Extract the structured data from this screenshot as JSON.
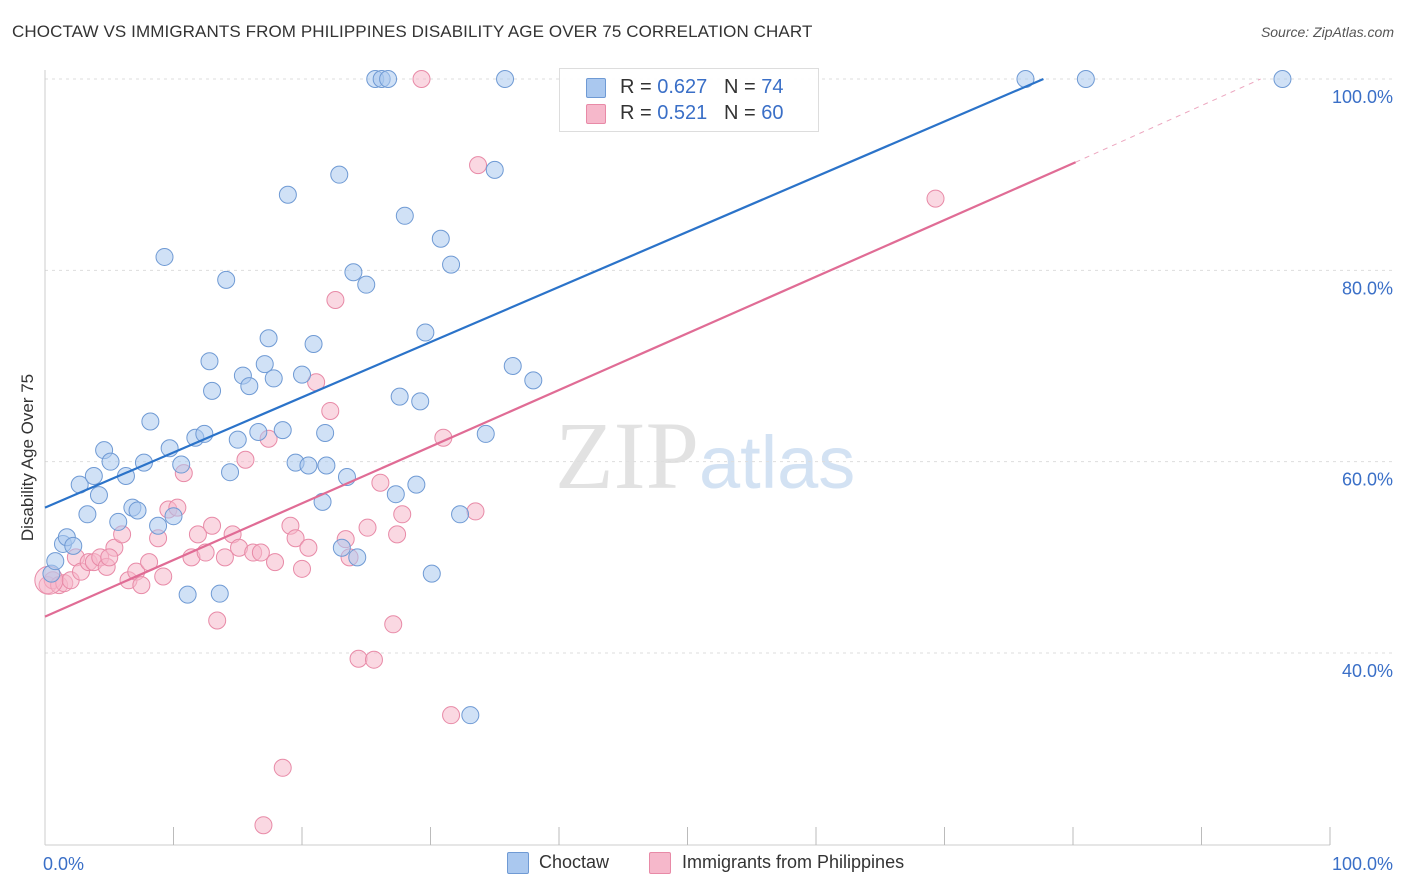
{
  "title": "CHOCTAW VS IMMIGRANTS FROM PHILIPPINES DISABILITY AGE OVER 75 CORRELATION CHART",
  "source": "Source: ZipAtlas.com",
  "watermark": {
    "zip": "ZIP",
    "atlas": "atlas"
  },
  "legend": {
    "series1": {
      "r_label": "R =",
      "r_value": "0.627",
      "n_label": "N =",
      "n_value": "74"
    },
    "series2": {
      "r_label": "R =",
      "r_value": "0.521",
      "n_label": "N =",
      "n_value": "60"
    }
  },
  "bottom_legend": {
    "series1": "Choctaw",
    "series2": "Immigrants from Philippines"
  },
  "colors": {
    "choctaw_fill": "#aac8ef",
    "choctaw_stroke": "#6f9ad4",
    "choctaw_line": "#2b73c9",
    "phil_fill": "#f6b8cb",
    "phil_stroke": "#e88aa7",
    "phil_line": "#e06c95",
    "grid": "#dddddd",
    "axis_label": "#3a6fc7"
  },
  "chart_data": {
    "type": "scatter",
    "title": "CHOCTAW VS IMMIGRANTS FROM PHILIPPINES DISABILITY AGE OVER 75 CORRELATION CHART",
    "xlabel": "",
    "ylabel": "Disability Age Over 75",
    "xlim": [
      0,
      100
    ],
    "ylim": [
      20,
      102
    ],
    "x_tick_labels": [
      "0.0%",
      "100.0%"
    ],
    "y_ticks": [
      40,
      60,
      80,
      100
    ],
    "y_tick_labels": [
      "40.0%",
      "60.0%",
      "80.0%",
      "100.0%"
    ],
    "grid": true,
    "legend_position": "top-center",
    "series": [
      {
        "name": "Choctaw",
        "r": 0.627,
        "n": 74,
        "trend": {
          "x0": 0,
          "y0": 55.2,
          "x1": 77.7,
          "y1": 100
        },
        "points": [
          [
            0.5,
            48.3
          ],
          [
            0.8,
            49.6
          ],
          [
            1.4,
            51.4
          ],
          [
            1.7,
            52.1
          ],
          [
            2.2,
            51.2
          ],
          [
            2.7,
            57.6
          ],
          [
            3.3,
            54.5
          ],
          [
            3.8,
            58.5
          ],
          [
            4.2,
            56.5
          ],
          [
            4.6,
            61.2
          ],
          [
            5.1,
            60.0
          ],
          [
            5.7,
            53.7
          ],
          [
            6.3,
            58.5
          ],
          [
            6.8,
            55.2
          ],
          [
            7.2,
            54.9
          ],
          [
            7.7,
            59.9
          ],
          [
            8.2,
            64.2
          ],
          [
            8.8,
            53.3
          ],
          [
            9.3,
            81.4
          ],
          [
            9.7,
            61.4
          ],
          [
            10.0,
            54.3
          ],
          [
            10.6,
            59.7
          ],
          [
            11.1,
            46.1
          ],
          [
            11.7,
            62.5
          ],
          [
            12.4,
            62.9
          ],
          [
            12.8,
            70.5
          ],
          [
            13.0,
            67.4
          ],
          [
            13.6,
            46.2
          ],
          [
            14.1,
            79.0
          ],
          [
            14.4,
            58.9
          ],
          [
            15.0,
            62.3
          ],
          [
            15.4,
            69.0
          ],
          [
            15.9,
            67.9
          ],
          [
            16.6,
            63.1
          ],
          [
            17.1,
            70.2
          ],
          [
            17.4,
            72.9
          ],
          [
            17.8,
            68.7
          ],
          [
            18.5,
            63.3
          ],
          [
            18.9,
            87.9
          ],
          [
            19.5,
            59.9
          ],
          [
            20.0,
            69.1
          ],
          [
            20.5,
            59.6
          ],
          [
            20.9,
            72.3
          ],
          [
            21.6,
            55.8
          ],
          [
            21.9,
            59.6
          ],
          [
            22.9,
            90.0
          ],
          [
            23.5,
            58.4
          ],
          [
            24.0,
            79.8
          ],
          [
            24.3,
            50.0
          ],
          [
            25.0,
            78.5
          ],
          [
            25.7,
            100.0
          ],
          [
            26.2,
            100.0
          ],
          [
            26.7,
            100.0
          ],
          [
            27.3,
            56.6
          ],
          [
            27.6,
            66.8
          ],
          [
            28.0,
            85.7
          ],
          [
            28.9,
            57.6
          ],
          [
            29.2,
            66.3
          ],
          [
            29.6,
            73.5
          ],
          [
            30.1,
            48.3
          ],
          [
            30.8,
            83.3
          ],
          [
            31.6,
            80.6
          ],
          [
            32.3,
            54.5
          ],
          [
            33.1,
            33.5
          ],
          [
            34.3,
            62.9
          ],
          [
            35.0,
            90.5
          ],
          [
            35.8,
            100.0
          ],
          [
            36.4,
            70.0
          ],
          [
            38.0,
            68.5
          ],
          [
            21.8,
            63.0
          ],
          [
            76.3,
            100.0
          ],
          [
            81.0,
            100.0
          ],
          [
            96.3,
            100.0
          ],
          [
            23.1,
            51.0
          ]
        ]
      },
      {
        "name": "Immigrants from Philippines",
        "r": 0.521,
        "n": 60,
        "trend": {
          "x0": 0,
          "y0": 43.8,
          "x1": 80.2,
          "y1": 91.3,
          "dashed_to_x": 94.6,
          "dashed_to_y": 100
        },
        "points": [
          [
            0.2,
            47.1
          ],
          [
            0.6,
            47.6
          ],
          [
            1.1,
            47.1
          ],
          [
            1.5,
            47.3
          ],
          [
            2.0,
            47.6
          ],
          [
            2.4,
            50.0
          ],
          [
            2.8,
            48.5
          ],
          [
            3.4,
            49.5
          ],
          [
            3.8,
            49.5
          ],
          [
            4.3,
            50.0
          ],
          [
            4.8,
            49.0
          ],
          [
            5.4,
            51.0
          ],
          [
            6.0,
            52.4
          ],
          [
            6.5,
            47.6
          ],
          [
            7.1,
            48.5
          ],
          [
            7.5,
            47.1
          ],
          [
            8.1,
            49.5
          ],
          [
            8.8,
            52.0
          ],
          [
            9.2,
            48.0
          ],
          [
            9.6,
            55.0
          ],
          [
            10.3,
            55.2
          ],
          [
            10.8,
            58.8
          ],
          [
            11.4,
            50.0
          ],
          [
            11.9,
            52.4
          ],
          [
            12.5,
            50.5
          ],
          [
            13.0,
            53.3
          ],
          [
            13.4,
            43.4
          ],
          [
            14.0,
            50.0
          ],
          [
            14.6,
            52.4
          ],
          [
            15.1,
            51.0
          ],
          [
            15.6,
            60.2
          ],
          [
            16.2,
            50.5
          ],
          [
            16.8,
            50.5
          ],
          [
            17.4,
            62.4
          ],
          [
            17.9,
            49.5
          ],
          [
            18.5,
            28.0
          ],
          [
            19.1,
            53.3
          ],
          [
            19.5,
            52.0
          ],
          [
            20.0,
            48.8
          ],
          [
            20.5,
            51.0
          ],
          [
            21.1,
            68.3
          ],
          [
            22.2,
            65.3
          ],
          [
            22.6,
            76.9
          ],
          [
            23.4,
            51.9
          ],
          [
            23.7,
            50.0
          ],
          [
            24.4,
            39.4
          ],
          [
            25.1,
            53.1
          ],
          [
            25.6,
            39.3
          ],
          [
            26.1,
            57.8
          ],
          [
            27.1,
            43.0
          ],
          [
            27.4,
            52.4
          ],
          [
            27.8,
            54.5
          ],
          [
            29.3,
            100.0
          ],
          [
            31.0,
            62.5
          ],
          [
            31.6,
            33.5
          ],
          [
            33.5,
            54.8
          ],
          [
            33.7,
            91.0
          ],
          [
            69.3,
            87.5
          ],
          [
            17.0,
            22.0
          ],
          [
            5.0,
            50.0
          ]
        ]
      }
    ]
  }
}
